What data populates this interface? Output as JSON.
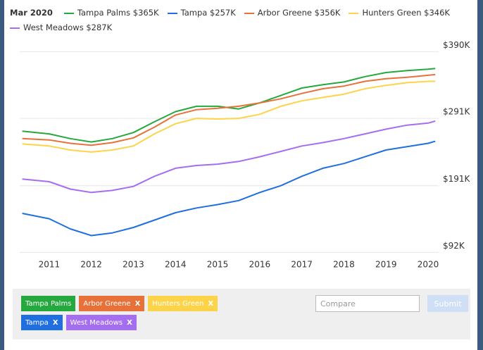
{
  "chart_data": {
    "type": "line",
    "legend_date": "Mar 2020",
    "x": [
      2010.36,
      2011,
      2011.5,
      2012,
      2012.5,
      2013,
      2013.5,
      2014,
      2014.5,
      2015,
      2015.5,
      2016,
      2016.5,
      2017,
      2017.5,
      2018,
      2018.5,
      2019,
      2019.5,
      2020,
      2020.17
    ],
    "xlim": [
      2010.3,
      2020.25
    ],
    "xticks": [
      2011,
      2012,
      2013,
      2014,
      2015,
      2016,
      2017,
      2018,
      2019,
      2020
    ],
    "ylim": [
      82,
      404
    ],
    "yticks": [
      {
        "value": 92,
        "label": "$92K"
      },
      {
        "value": 191,
        "label": "$191K"
      },
      {
        "value": 291,
        "label": "$291K"
      },
      {
        "value": 390,
        "label": "$390K"
      }
    ],
    "grid": true,
    "series": [
      {
        "name": "Tampa Palms $365K",
        "color": "#25a83d",
        "values": [
          272,
          268,
          261,
          256,
          261,
          270,
          286,
          301,
          309,
          309,
          305,
          314,
          325,
          336,
          341,
          345,
          353,
          359,
          362,
          364,
          365
        ]
      },
      {
        "name": "Tampa $257K",
        "color": "#1f6fe0",
        "values": [
          150,
          142,
          127,
          117,
          121,
          129,
          140,
          151,
          158,
          163,
          169,
          181,
          191,
          205,
          217,
          224,
          234,
          244,
          249,
          254,
          257
        ]
      },
      {
        "name": "Arbor Greene $356K",
        "color": "#e8713a",
        "values": [
          261,
          259,
          254,
          251,
          255,
          262,
          278,
          296,
          304,
          306,
          309,
          314,
          320,
          328,
          335,
          339,
          346,
          350,
          352,
          355,
          356
        ]
      },
      {
        "name": "Hunters Green $346K",
        "color": "#fdd34a",
        "values": [
          253,
          250,
          244,
          241,
          244,
          250,
          268,
          283,
          291,
          290,
          291,
          297,
          309,
          317,
          322,
          327,
          335,
          340,
          344,
          346,
          346
        ]
      },
      {
        "name": "West Meadows $287K",
        "color": "#a56ef0",
        "values": [
          201,
          197,
          186,
          181,
          184,
          190,
          205,
          217,
          221,
          223,
          227,
          234,
          242,
          250,
          255,
          261,
          268,
          275,
          281,
          284,
          287
        ]
      }
    ]
  },
  "controls": {
    "chips": [
      {
        "label": "Tampa Palms",
        "color": "#25a83d",
        "removable": false
      },
      {
        "label": "Arbor Greene",
        "color": "#e8713a",
        "removable": true
      },
      {
        "label": "Hunters Green",
        "color": "#fdd34a",
        "removable": true
      },
      {
        "label": "Tampa",
        "color": "#1f6fe0",
        "removable": true
      },
      {
        "label": "West Meadows",
        "color": "#a56ef0",
        "removable": true
      }
    ],
    "remove_label": "X",
    "compare_placeholder": "Compare",
    "submit_label": "Submit"
  }
}
